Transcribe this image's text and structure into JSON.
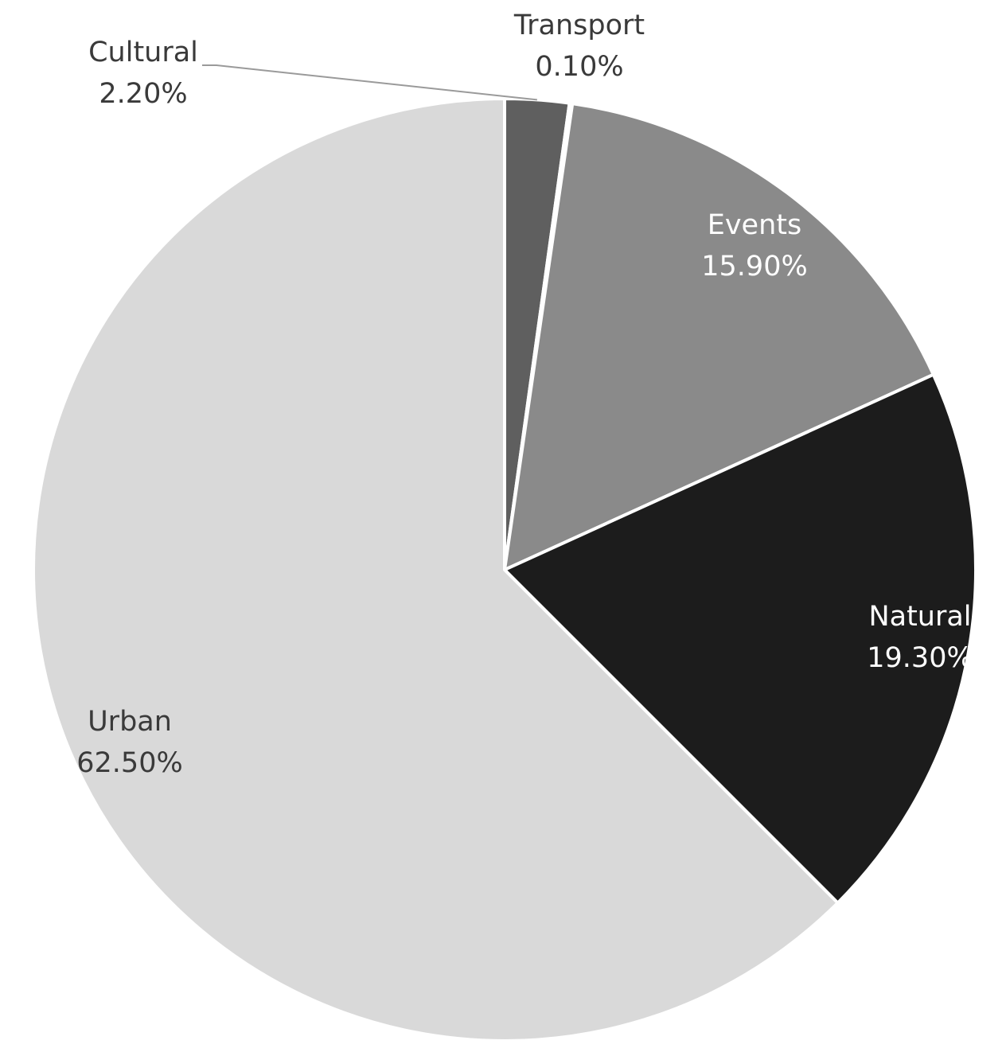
{
  "chart_data": {
    "type": "pie",
    "slices": [
      {
        "name": "Cultural",
        "label": "Cultural",
        "value": 2.2,
        "value_label": "2.20%",
        "color": "#5f5f5f",
        "text_color": "#3a3a3a"
      },
      {
        "name": "Transport",
        "label": "Transport",
        "value": 0.1,
        "value_label": "0.10%",
        "color": "#3f3f3f",
        "text_color": "#3a3a3a"
      },
      {
        "name": "Events",
        "label": "Events",
        "value": 15.9,
        "value_label": "15.90%",
        "color": "#8a8a8a",
        "text_color": "#ffffff"
      },
      {
        "name": "Natural",
        "label": "Natural",
        "value": 19.3,
        "value_label": "19.30%",
        "color": "#1c1c1c",
        "text_color": "#ffffff"
      },
      {
        "name": "Urban",
        "label": "Urban",
        "value": 62.5,
        "value_label": "62.50%",
        "color": "#d9d9d9",
        "text_color": "#3a3a3a"
      }
    ],
    "start": "12 o'clock",
    "direction": "clockwise",
    "slice_border_color": "#ffffff",
    "legend": "none"
  }
}
